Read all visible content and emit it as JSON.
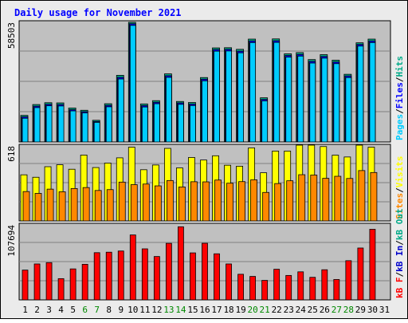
{
  "chart_data": {
    "type": "bar",
    "title": "Daily usage for November 2021",
    "categories": [
      "1",
      "2",
      "3",
      "4",
      "5",
      "6",
      "7",
      "8",
      "9",
      "10",
      "11",
      "12",
      "13",
      "14",
      "15",
      "16",
      "17",
      "18",
      "19",
      "20",
      "21",
      "22",
      "23",
      "24",
      "25",
      "26",
      "27",
      "28",
      "29",
      "30",
      "31"
    ],
    "weekend_days": [
      "6",
      "7",
      "13",
      "14",
      "20",
      "21",
      "27",
      "28"
    ],
    "colors": {
      "title": "#0000ff",
      "pages": "#00ccff",
      "files": "#0000ff",
      "hits": "#00aa88",
      "visits": "#ffff00",
      "sites": "#ff8800",
      "kbin": "#0000cc",
      "kbout": "#00aa88",
      "kbf": "#ff0000",
      "weekend_label": "#008800",
      "day_label": "#000000",
      "panel_bg": "#c0c0c0",
      "frame_bg": "#ebebeb"
    },
    "panels": [
      {
        "id": "top",
        "ytick": "58503",
        "ylim": [
          0,
          58503
        ],
        "right_labels": [
          "Pages",
          "/",
          "Files",
          "/",
          "Hits"
        ],
        "series": [
          {
            "name": "Hits",
            "values": [
              13000,
              18300,
              19200,
              19100,
              16600,
              15500,
              10600,
              18700,
              32600,
              58500,
              18600,
              20200,
              33300,
              19800,
              19300,
              31500,
              46000,
              46100,
              45300,
              50300,
              21600,
              50400,
              43100,
              43700,
              40300,
              42700,
              40000,
              33100,
              48500,
              50300,
              0
            ]
          },
          {
            "name": "Files",
            "values": [
              12300,
              17500,
              18400,
              18300,
              15800,
              14800,
              10000,
              17900,
              31600,
              57800,
              17800,
              19400,
              32400,
              19100,
              18500,
              30700,
              45200,
              45300,
              44400,
              49400,
              20800,
              49500,
              42300,
              42800,
              39400,
              41800,
              39100,
              32300,
              47700,
              49400,
              0
            ]
          },
          {
            "name": "Pages",
            "values": [
              11600,
              16800,
              17700,
              17600,
              15200,
              14200,
              9600,
              17200,
              30800,
              57000,
              17100,
              18700,
              31600,
              18400,
              17800,
              29900,
              44400,
              44500,
              43600,
              48600,
              20100,
              48700,
              41500,
              42000,
              38600,
              41000,
              38300,
              31500,
              46900,
              48600,
              0
            ]
          }
        ]
      },
      {
        "id": "middle",
        "ytick": "618",
        "ylim": [
          0,
          618
        ],
        "right_labels": [
          "Sites",
          "/",
          "Visits"
        ],
        "series": [
          {
            "name": "Visits",
            "values": [
              380,
              360,
              447,
              463,
              426,
              543,
              440,
              477,
              520,
              608,
              422,
              461,
              598,
              437,
              523,
              502,
              537,
              459,
              451,
              602,
              397,
              576,
              576,
              628,
              628,
              613,
              542,
              527,
              645,
              608,
              0
            ]
          },
          {
            "name": "Sites",
            "values": [
              242,
              227,
              262,
              240,
              267,
              275,
              251,
              258,
              320,
              299,
              304,
              289,
              333,
              280,
              323,
              322,
              337,
              311,
              324,
              339,
              235,
              308,
              331,
              381,
              378,
              351,
              368,
              350,
              415,
              399,
              0
            ]
          }
        ]
      },
      {
        "id": "bottom",
        "ytick": "107694",
        "ylim": [
          0,
          107694
        ],
        "right_labels": [
          "kB F",
          "/",
          "kB In",
          "/",
          "kB Out"
        ],
        "series": [
          {
            "name": "kB F",
            "values": [
              42800,
              51600,
              53500,
              30500,
              44500,
              51100,
              67800,
              68500,
              70200,
              93300,
              73300,
              62300,
              81200,
              105000,
              67500,
              81300,
              66200,
              51600,
              36800,
              33700,
              28000,
              44000,
              35100,
              40300,
              32400,
              43300,
              29300,
              56300,
              74500,
              101400,
              0
            ]
          }
        ]
      }
    ]
  }
}
